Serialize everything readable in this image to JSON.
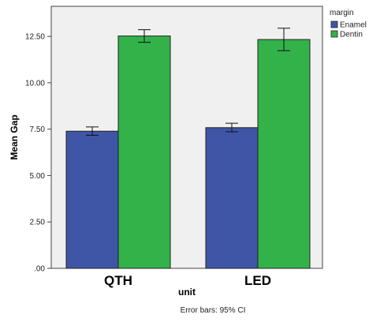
{
  "chart_data": {
    "type": "bar",
    "categories": [
      "QTH",
      "LED"
    ],
    "series": [
      {
        "name": "Enamel",
        "color": "#3f55a6",
        "values": [
          7.39,
          7.58
        ],
        "ci_low": [
          7.17,
          7.36
        ],
        "ci_high": [
          7.62,
          7.82
        ]
      },
      {
        "name": "Dentin",
        "color": "#33b24a",
        "values": [
          12.52,
          12.33
        ],
        "ci_low": [
          12.18,
          11.73
        ],
        "ci_high": [
          12.86,
          12.94
        ]
      }
    ],
    "xlabel": "unit",
    "ylabel": "Mean Gap",
    "ylim": [
      0,
      14.12
    ],
    "yticks": [
      0,
      2.5,
      5,
      7.5,
      10,
      12.5
    ],
    "ytick_labels": [
      ".00",
      "2.50",
      "5.00",
      "7.50",
      "10.00",
      "12.50"
    ],
    "legend_title": "margin",
    "legend_position": "top-right",
    "footnote": "Error bars: 95% CI",
    "plot_background": "#f0f0f0",
    "grid": false
  }
}
